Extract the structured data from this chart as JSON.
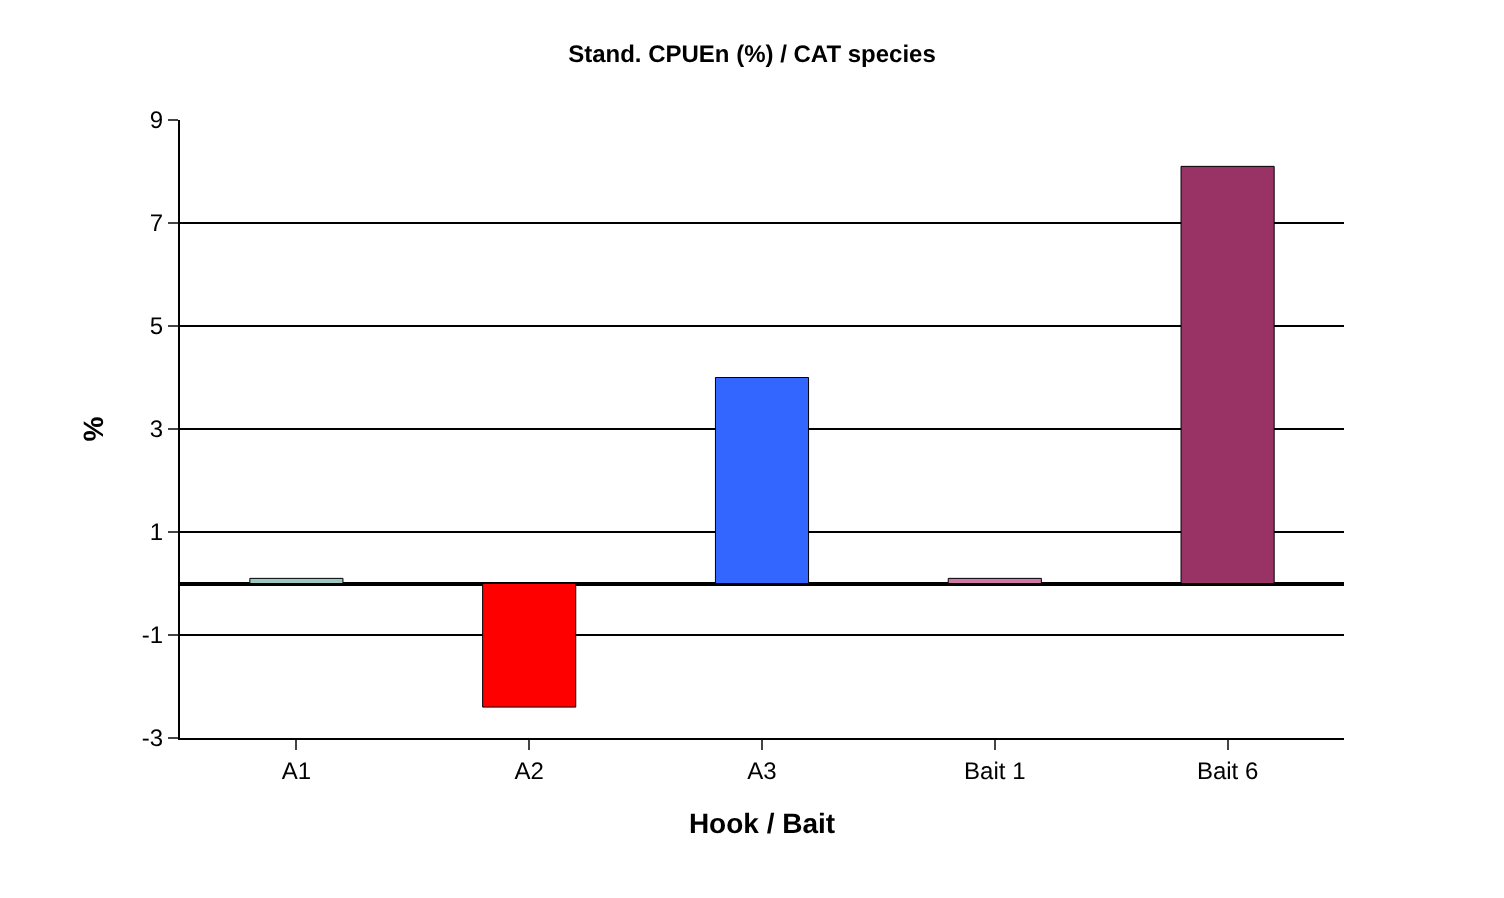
{
  "chart_data": {
    "type": "bar",
    "title": "Stand. CPUEn (%) / CAT species",
    "xlabel": "Hook / Bait",
    "ylabel": "%",
    "categories": [
      "A1",
      "A2",
      "A3",
      "Bait 1",
      "Bait 6"
    ],
    "values": [
      0.1,
      -2.4,
      4.0,
      0.1,
      8.1
    ],
    "colors": [
      "#99c7c2",
      "#ff0000",
      "#3366ff",
      "#cc79a7",
      "#993366"
    ],
    "ylim": [
      -3,
      9
    ],
    "yticks": [
      -3,
      -1,
      1,
      3,
      5,
      7,
      9
    ],
    "grid": "y"
  }
}
